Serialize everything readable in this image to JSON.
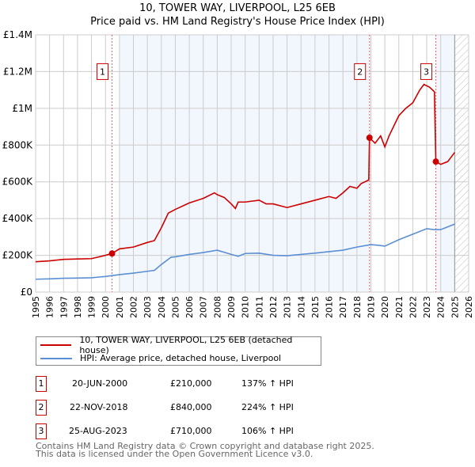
{
  "title": "10, TOWER WAY, LIVERPOOL, L25 6EB",
  "subtitle": "Price paid vs. HM Land Registry's House Price Index (HPI)",
  "chart_data": {
    "type": "line",
    "xlim": [
      1995,
      2026
    ],
    "ylim": [
      0,
      1400000
    ],
    "x_ticks": [
      "1995",
      "1996",
      "1997",
      "1998",
      "1999",
      "2000",
      "2001",
      "2002",
      "2003",
      "2004",
      "2005",
      "2006",
      "2007",
      "2008",
      "2009",
      "2010",
      "2011",
      "2012",
      "2013",
      "2014",
      "2015",
      "2016",
      "2017",
      "2018",
      "2019",
      "2020",
      "2021",
      "2022",
      "2023",
      "2024",
      "2025",
      "2026"
    ],
    "y_ticks": [
      {
        "v": 0,
        "l": "£0"
      },
      {
        "v": 200000,
        "l": "£200K"
      },
      {
        "v": 400000,
        "l": "£400K"
      },
      {
        "v": 600000,
        "l": "£600K"
      },
      {
        "v": 800000,
        "l": "£800K"
      },
      {
        "v": 1000000,
        "l": "£1M"
      },
      {
        "v": 1200000,
        "l": "£1.2M"
      },
      {
        "v": 1400000,
        "l": "£1.4M"
      }
    ],
    "series": [
      {
        "name": "10, TOWER WAY, LIVERPOOL, L25 6EB (detached house)",
        "color": "#cc0000",
        "points": [
          [
            1995,
            165000
          ],
          [
            1996,
            170000
          ],
          [
            1997,
            178000
          ],
          [
            1998,
            180000
          ],
          [
            1999,
            182000
          ],
          [
            2000,
            200000
          ],
          [
            2000.47,
            210000
          ],
          [
            2001,
            235000
          ],
          [
            2002,
            245000
          ],
          [
            2003,
            270000
          ],
          [
            2003.5,
            280000
          ],
          [
            2004,
            350000
          ],
          [
            2004.5,
            430000
          ],
          [
            2005,
            450000
          ],
          [
            2006,
            485000
          ],
          [
            2007,
            510000
          ],
          [
            2007.8,
            540000
          ],
          [
            2008,
            530000
          ],
          [
            2008.5,
            515000
          ],
          [
            2009,
            480000
          ],
          [
            2009.3,
            455000
          ],
          [
            2009.5,
            490000
          ],
          [
            2010,
            490000
          ],
          [
            2011,
            500000
          ],
          [
            2011.5,
            480000
          ],
          [
            2012,
            480000
          ],
          [
            2013,
            460000
          ],
          [
            2014,
            480000
          ],
          [
            2015,
            500000
          ],
          [
            2016,
            520000
          ],
          [
            2016.5,
            510000
          ],
          [
            2017,
            540000
          ],
          [
            2017.5,
            575000
          ],
          [
            2018,
            565000
          ],
          [
            2018.3,
            590000
          ],
          [
            2018.85,
            610000
          ],
          [
            2018.9,
            840000
          ],
          [
            2019.3,
            810000
          ],
          [
            2019.7,
            850000
          ],
          [
            2020,
            790000
          ],
          [
            2020.3,
            850000
          ],
          [
            2021,
            960000
          ],
          [
            2021.5,
            1000000
          ],
          [
            2022,
            1030000
          ],
          [
            2022.5,
            1100000
          ],
          [
            2022.8,
            1130000
          ],
          [
            2023.2,
            1115000
          ],
          [
            2023.55,
            1090000
          ],
          [
            2023.65,
            710000
          ],
          [
            2024,
            695000
          ],
          [
            2024.5,
            710000
          ],
          [
            2025,
            760000
          ]
        ]
      },
      {
        "name": "HPI: Average price, detached house, Liverpool",
        "color": "#5b8fd4",
        "points": [
          [
            1995,
            70000
          ],
          [
            1996,
            72000
          ],
          [
            1997,
            75000
          ],
          [
            1998,
            76000
          ],
          [
            1999,
            78000
          ],
          [
            2000,
            85000
          ],
          [
            2001,
            95000
          ],
          [
            2002,
            103000
          ],
          [
            2003,
            113000
          ],
          [
            2003.5,
            118000
          ],
          [
            2004,
            150000
          ],
          [
            2004.7,
            190000
          ],
          [
            2005,
            192000
          ],
          [
            2006,
            205000
          ],
          [
            2007,
            215000
          ],
          [
            2008,
            228000
          ],
          [
            2009,
            205000
          ],
          [
            2009.5,
            195000
          ],
          [
            2010,
            210000
          ],
          [
            2011,
            212000
          ],
          [
            2012,
            200000
          ],
          [
            2013,
            198000
          ],
          [
            2014,
            205000
          ],
          [
            2015,
            212000
          ],
          [
            2016,
            220000
          ],
          [
            2017,
            228000
          ],
          [
            2018,
            245000
          ],
          [
            2019,
            258000
          ],
          [
            2019.5,
            255000
          ],
          [
            2020,
            250000
          ],
          [
            2021,
            285000
          ],
          [
            2022,
            315000
          ],
          [
            2023,
            345000
          ],
          [
            2023.5,
            340000
          ],
          [
            2024,
            340000
          ],
          [
            2025,
            370000
          ]
        ]
      }
    ],
    "sales": [
      {
        "label": "1",
        "x": 2000.47,
        "y": 210000
      },
      {
        "label": "2",
        "x": 2018.9,
        "y": 840000
      },
      {
        "label": "3",
        "x": 2023.65,
        "y": 710000
      }
    ]
  },
  "legend": [
    "10, TOWER WAY, LIVERPOOL, L25 6EB (detached house)",
    "HPI: Average price, detached house, Liverpool"
  ],
  "transactions": [
    {
      "n": "1",
      "date": "20-JUN-2000",
      "price": "£210,000",
      "hpi": "137% ↑ HPI"
    },
    {
      "n": "2",
      "date": "22-NOV-2018",
      "price": "£840,000",
      "hpi": "224% ↑ HPI"
    },
    {
      "n": "3",
      "date": "25-AUG-2023",
      "price": "£710,000",
      "hpi": "106% ↑ HPI"
    }
  ],
  "footer": [
    "Contains HM Land Registry data © Crown copyright and database right 2025.",
    "This data is licensed under the Open Government Licence v3.0."
  ]
}
